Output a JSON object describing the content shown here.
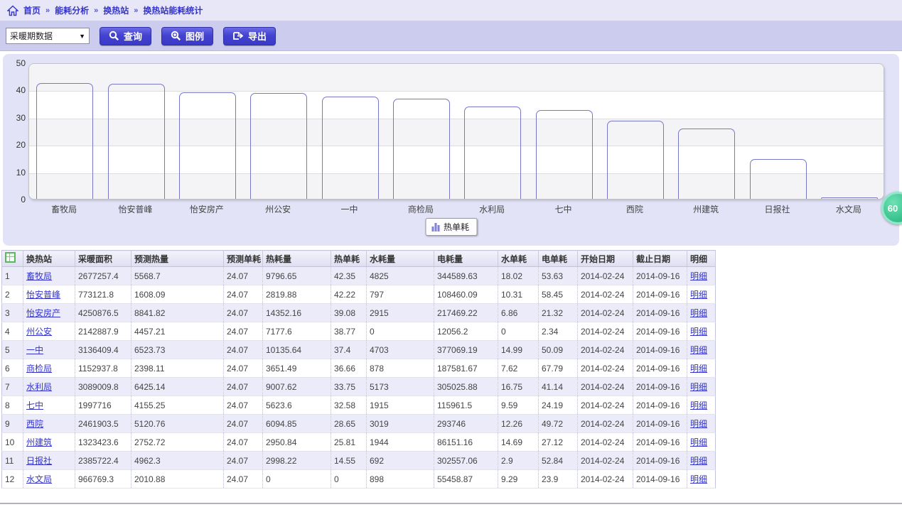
{
  "breadcrumb": {
    "home": "首页",
    "separator": "»",
    "items": [
      "能耗分析",
      "换热站",
      "换热站能耗统计"
    ]
  },
  "toolbar": {
    "period_select_value": "采暖期数据",
    "query_label": "查询",
    "legend_label": "图例",
    "export_label": "导出"
  },
  "chart_data": {
    "type": "bar",
    "title": "",
    "categories": [
      "畜牧局",
      "怡安普峰",
      "怡安房产",
      "州公安",
      "一中",
      "商检局",
      "水利局",
      "七中",
      "西院",
      "州建筑",
      "日报社",
      "水文局"
    ],
    "values": [
      42.35,
      42.22,
      39.08,
      38.77,
      37.4,
      36.66,
      33.75,
      32.58,
      28.65,
      25.81,
      14.55,
      0
    ],
    "series_name": "热单耗",
    "xlabel": "",
    "ylabel": "",
    "ylim": [
      0,
      50
    ],
    "yticks": [
      0,
      10,
      20,
      30,
      40,
      50
    ],
    "grid": true,
    "legend_position": "bottom",
    "bar_color": "#9a9ae4"
  },
  "legend": {
    "label": "热单耗"
  },
  "float_badge": {
    "label": "60"
  },
  "table": {
    "columns": [
      "换热站",
      "采暖面积",
      "预测热量",
      "预测单耗",
      "热耗量",
      "热单耗",
      "水耗量",
      "电耗量",
      "水单耗",
      "电单耗",
      "开始日期",
      "截止日期",
      "明细"
    ],
    "detail_label": "明细",
    "rows": [
      [
        "畜牧局",
        "2677257.4",
        "5568.7",
        "24.07",
        "9796.65",
        "42.35",
        "4825",
        "344589.63",
        "18.02",
        "53.63",
        "2014-02-24",
        "2014-09-16"
      ],
      [
        "怡安普峰",
        "773121.8",
        "1608.09",
        "24.07",
        "2819.88",
        "42.22",
        "797",
        "108460.09",
        "10.31",
        "58.45",
        "2014-02-24",
        "2014-09-16"
      ],
      [
        "怡安房产",
        "4250876.5",
        "8841.82",
        "24.07",
        "14352.16",
        "39.08",
        "2915",
        "217469.22",
        "6.86",
        "21.32",
        "2014-02-24",
        "2014-09-16"
      ],
      [
        "州公安",
        "2142887.9",
        "4457.21",
        "24.07",
        "7177.6",
        "38.77",
        "0",
        "12056.2",
        "0",
        "2.34",
        "2014-02-24",
        "2014-09-16"
      ],
      [
        "一中",
        "3136409.4",
        "6523.73",
        "24.07",
        "10135.64",
        "37.4",
        "4703",
        "377069.19",
        "14.99",
        "50.09",
        "2014-02-24",
        "2014-09-16"
      ],
      [
        "商检局",
        "1152937.8",
        "2398.11",
        "24.07",
        "3651.49",
        "36.66",
        "878",
        "187581.67",
        "7.62",
        "67.79",
        "2014-02-24",
        "2014-09-16"
      ],
      [
        "水利局",
        "3089009.8",
        "6425.14",
        "24.07",
        "9007.62",
        "33.75",
        "5173",
        "305025.88",
        "16.75",
        "41.14",
        "2014-02-24",
        "2014-09-16"
      ],
      [
        "七中",
        "1997716",
        "4155.25",
        "24.07",
        "5623.6",
        "32.58",
        "1915",
        "115961.5",
        "9.59",
        "24.19",
        "2014-02-24",
        "2014-09-16"
      ],
      [
        "西院",
        "2461903.5",
        "5120.76",
        "24.07",
        "6094.85",
        "28.65",
        "3019",
        "293746",
        "12.26",
        "49.72",
        "2014-02-24",
        "2014-09-16"
      ],
      [
        "州建筑",
        "1323423.6",
        "2752.72",
        "24.07",
        "2950.84",
        "25.81",
        "1944",
        "86151.16",
        "14.69",
        "27.12",
        "2014-02-24",
        "2014-09-16"
      ],
      [
        "日报社",
        "2385722.4",
        "4962.3",
        "24.07",
        "2998.22",
        "14.55",
        "692",
        "302557.06",
        "2.9",
        "52.84",
        "2014-02-24",
        "2014-09-16"
      ],
      [
        "水文局",
        "966769.3",
        "2010.88",
        "24.07",
        "0",
        "0",
        "898",
        "55458.87",
        "9.29",
        "23.9",
        "2014-02-24",
        "2014-09-16"
      ]
    ]
  }
}
